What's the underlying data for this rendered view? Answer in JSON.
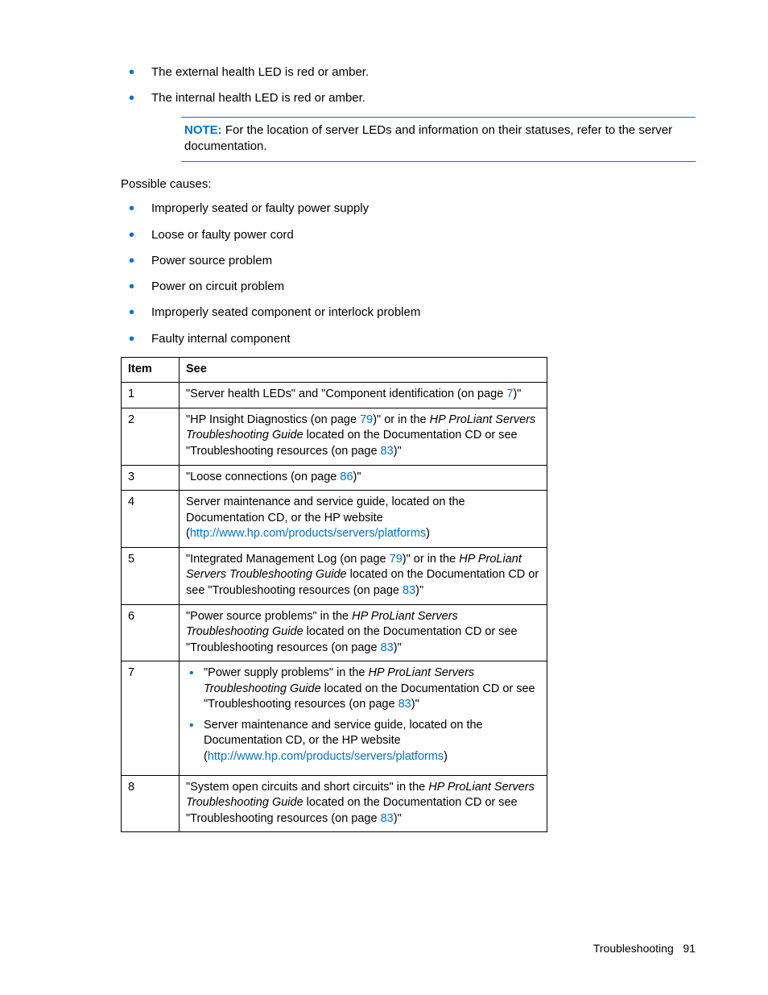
{
  "top_bullets": [
    "The external health LED is red or amber.",
    "The internal health LED is red or amber."
  ],
  "note": {
    "label": "NOTE:",
    "text": "For the location of server LEDs and information on their statuses, refer to the server documentation."
  },
  "possible_causes_label": "Possible causes:",
  "cause_bullets": [
    "Improperly seated or faulty power supply",
    "Loose or faulty power cord",
    "Power source problem",
    "Power on circuit problem",
    "Improperly seated component or interlock problem",
    "Faulty internal component"
  ],
  "table": {
    "headers": [
      "Item",
      "See"
    ],
    "rows": [
      {
        "item": "1",
        "html": "\"Server health LEDs\" and \"Component identification (on page <span class='link'>7</span>)\""
      },
      {
        "item": "2",
        "html": "\"HP Insight Diagnostics (on page <span class='link'>79</span>)\" or in the <span class='italic'>HP ProLiant Servers Troubleshooting Guide</span> located on the Documentation CD or see \"Troubleshooting resources (on page <span class='link'>83</span>)\""
      },
      {
        "item": "3",
        "html": "\"Loose connections (on page <span class='link'>86</span>)\""
      },
      {
        "item": "4",
        "html": "Server maintenance and service guide, located on the Documentation CD, or the HP website (<span class='link'>http://www.hp.com/products/servers/platforms</span>)"
      },
      {
        "item": "5",
        "html": "\"Integrated Management Log (on page <span class='link'>79</span>)\" or in the <span class='italic'>HP ProLiant Servers Troubleshooting Guide</span> located on the Documentation CD or see \"Troubleshooting resources (on page <span class='link'>83</span>)\""
      },
      {
        "item": "6",
        "html": "\"Power source problems\" in the <span class='italic'>HP ProLiant Servers Troubleshooting Guide</span> located on the Documentation CD or see \"Troubleshooting resources (on page <span class='link'>83</span>)\""
      },
      {
        "item": "7",
        "inner_list": [
          "\"Power supply problems\" in the <span class='italic'>HP ProLiant Servers Troubleshooting Guide</span> located on the Documentation CD or see \"Troubleshooting resources (on page <span class='link'>83</span>)\"",
          "Server maintenance and service guide, located on the Documentation CD, or the HP website (<span class='link'>http://www.hp.com/products/servers/platforms</span>)"
        ]
      },
      {
        "item": "8",
        "html": "\"System open circuits and short circuits\" in the <span class='italic'>HP ProLiant Servers Troubleshooting Guide</span> located on the Documentation CD or see \"Troubleshooting resources (on page <span class='link'>83</span>)\""
      }
    ]
  },
  "footer": {
    "section": "Troubleshooting",
    "page": "91"
  }
}
